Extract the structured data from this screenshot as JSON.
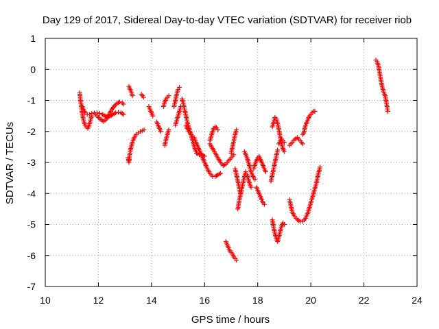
{
  "chart_data": {
    "type": "scatter",
    "title": "Day 129 of 2017, Sidereal Day-to-day VTEC variation (SDTVAR) for receiver riob",
    "xlabel": "GPS time / hours",
    "ylabel": "SDTVAR / TECUs",
    "xlim": [
      10,
      24
    ],
    "ylim": [
      -7,
      1
    ],
    "xticks": [
      10,
      12,
      14,
      16,
      18,
      20,
      22,
      24
    ],
    "yticks": [
      -7,
      -6,
      -5,
      -4,
      -3,
      -2,
      -1,
      0,
      1
    ],
    "grid": true,
    "marker": "+",
    "color": "#ff0000",
    "segments": [
      [
        [
          11.3,
          -0.75
        ],
        [
          11.32,
          -0.95
        ],
        [
          11.35,
          -1.15
        ],
        [
          11.38,
          -1.35
        ],
        [
          11.42,
          -1.55
        ],
        [
          11.46,
          -1.7
        ],
        [
          11.5,
          -1.8
        ],
        [
          11.55,
          -1.85
        ],
        [
          11.6,
          -1.9
        ],
        [
          11.65,
          -1.8
        ],
        [
          11.7,
          -1.65
        ],
        [
          11.75,
          -1.5
        ]
      ],
      [
        [
          11.4,
          -1.2
        ],
        [
          11.45,
          -1.3
        ],
        [
          11.5,
          -1.4
        ],
        [
          11.58,
          -1.45
        ],
        [
          11.66,
          -1.45
        ],
        [
          11.75,
          -1.42
        ],
        [
          11.85,
          -1.4
        ],
        [
          11.95,
          -1.4
        ],
        [
          12.05,
          -1.42
        ],
        [
          12.15,
          -1.45
        ],
        [
          12.25,
          -1.5
        ],
        [
          12.35,
          -1.55
        ],
        [
          12.45,
          -1.5
        ],
        [
          12.55,
          -1.45
        ],
        [
          12.65,
          -1.4
        ],
        [
          12.75,
          -1.38
        ],
        [
          12.85,
          -1.4
        ],
        [
          12.95,
          -1.45
        ]
      ],
      [
        [
          11.9,
          -1.45
        ],
        [
          12.0,
          -1.55
        ],
        [
          12.1,
          -1.62
        ],
        [
          12.2,
          -1.68
        ],
        [
          12.3,
          -1.6
        ],
        [
          12.4,
          -1.45
        ],
        [
          12.5,
          -1.3
        ],
        [
          12.6,
          -1.18
        ],
        [
          12.7,
          -1.1
        ],
        [
          12.8,
          -1.05
        ],
        [
          12.9,
          -1.08
        ],
        [
          12.95,
          -1.12
        ]
      ],
      [
        [
          13.15,
          -0.55
        ],
        [
          13.2,
          -0.65
        ],
        [
          13.25,
          -0.75
        ],
        [
          13.28,
          -0.85
        ]
      ],
      [
        [
          13.12,
          -2.85
        ],
        [
          13.15,
          -3.0
        ],
        [
          13.18,
          -2.75
        ],
        [
          13.22,
          -2.55
        ],
        [
          13.28,
          -2.35
        ],
        [
          13.35,
          -2.2
        ],
        [
          13.42,
          -2.1
        ],
        [
          13.5,
          -2.05
        ],
        [
          13.58,
          -2.0
        ],
        [
          13.65,
          -1.98
        ],
        [
          13.72,
          -1.95
        ]
      ],
      [
        [
          13.62,
          -0.8
        ],
        [
          13.66,
          -0.85
        ],
        [
          13.7,
          -0.9
        ]
      ],
      [
        [
          13.9,
          -1.2
        ],
        [
          13.95,
          -1.3
        ],
        [
          14.0,
          -1.4
        ],
        [
          14.05,
          -1.5
        ]
      ],
      [
        [
          14.2,
          -1.7
        ],
        [
          14.25,
          -1.8
        ],
        [
          14.3,
          -1.9
        ],
        [
          14.35,
          -2.0
        ]
      ],
      [
        [
          14.45,
          -1.2
        ],
        [
          14.5,
          -1.05
        ],
        [
          14.55,
          -0.95
        ],
        [
          14.6,
          -0.9
        ],
        [
          14.65,
          -0.85
        ]
      ],
      [
        [
          14.5,
          -2.45
        ],
        [
          14.55,
          -2.25
        ],
        [
          14.6,
          -2.1
        ],
        [
          14.65,
          -1.95
        ]
      ],
      [
        [
          14.85,
          -1.2
        ],
        [
          14.9,
          -1.0
        ],
        [
          14.95,
          -0.8
        ],
        [
          15.0,
          -0.65
        ],
        [
          15.05,
          -0.58
        ]
      ],
      [
        [
          14.9,
          -1.8
        ],
        [
          14.95,
          -1.65
        ],
        [
          15.0,
          -1.5
        ],
        [
          15.05,
          -1.35
        ],
        [
          15.1,
          -1.2
        ]
      ],
      [
        [
          15.15,
          -0.95
        ],
        [
          15.2,
          -1.1
        ],
        [
          15.25,
          -1.3
        ],
        [
          15.3,
          -1.5
        ],
        [
          15.35,
          -1.7
        ],
        [
          15.4,
          -1.85
        ],
        [
          15.45,
          -2.0
        ],
        [
          15.5,
          -2.15
        ],
        [
          15.55,
          -2.3
        ],
        [
          15.6,
          -2.45
        ],
        [
          15.65,
          -2.6
        ],
        [
          15.7,
          -2.7
        ],
        [
          15.8,
          -2.75
        ],
        [
          15.9,
          -2.75
        ],
        [
          16.0,
          -2.8
        ]
      ],
      [
        [
          15.3,
          -1.8
        ],
        [
          15.35,
          -1.9
        ],
        [
          15.4,
          -2.0
        ],
        [
          15.5,
          -2.1
        ],
        [
          15.6,
          -2.2
        ],
        [
          15.7,
          -2.4
        ],
        [
          15.8,
          -2.6
        ],
        [
          15.9,
          -2.8
        ],
        [
          16.0,
          -3.0
        ],
        [
          16.1,
          -3.2
        ],
        [
          16.2,
          -3.35
        ],
        [
          16.3,
          -3.45
        ],
        [
          16.4,
          -3.45
        ],
        [
          16.5,
          -3.4
        ],
        [
          16.6,
          -3.35
        ]
      ],
      [
        [
          16.2,
          -2.3
        ],
        [
          16.25,
          -2.15
        ],
        [
          16.3,
          -2.0
        ],
        [
          16.35,
          -1.9
        ],
        [
          16.4,
          -1.85
        ],
        [
          16.45,
          -1.88
        ],
        [
          16.5,
          -1.95
        ]
      ],
      [
        [
          16.2,
          -2.4
        ],
        [
          16.3,
          -2.55
        ],
        [
          16.4,
          -2.7
        ],
        [
          16.5,
          -2.85
        ],
        [
          16.6,
          -3.0
        ],
        [
          16.7,
          -3.1
        ],
        [
          16.8,
          -3.05
        ],
        [
          16.9,
          -2.95
        ],
        [
          17.0,
          -2.85
        ],
        [
          17.1,
          -2.75
        ]
      ],
      [
        [
          16.8,
          -5.55
        ],
        [
          16.85,
          -5.65
        ],
        [
          16.9,
          -5.75
        ],
        [
          16.95,
          -5.85
        ],
        [
          17.0,
          -5.9
        ],
        [
          17.05,
          -5.95
        ],
        [
          17.1,
          -6.05
        ],
        [
          17.15,
          -6.1
        ],
        [
          17.2,
          -6.15
        ]
      ],
      [
        [
          17.0,
          -2.7
        ],
        [
          17.05,
          -2.5
        ],
        [
          17.1,
          -2.3
        ],
        [
          17.15,
          -2.1
        ],
        [
          17.2,
          -1.95
        ]
      ],
      [
        [
          17.15,
          -3.2
        ],
        [
          17.2,
          -3.4
        ],
        [
          17.25,
          -3.6
        ],
        [
          17.3,
          -3.8
        ],
        [
          17.35,
          -4.0
        ]
      ],
      [
        [
          17.25,
          -4.5
        ],
        [
          17.3,
          -4.25
        ],
        [
          17.35,
          -4.05
        ],
        [
          17.4,
          -3.85
        ],
        [
          17.45,
          -3.65
        ],
        [
          17.5,
          -3.45
        ],
        [
          17.55,
          -3.3
        ]
      ],
      [
        [
          17.6,
          -3.4
        ],
        [
          17.65,
          -3.55
        ],
        [
          17.7,
          -3.7
        ],
        [
          17.75,
          -3.8
        ]
      ],
      [
        [
          17.5,
          -2.65
        ],
        [
          17.55,
          -2.75
        ],
        [
          17.6,
          -2.85
        ],
        [
          17.65,
          -3.0
        ],
        [
          17.7,
          -3.15
        ],
        [
          17.75,
          -3.3
        ],
        [
          17.8,
          -3.4
        ],
        [
          17.85,
          -3.5
        ],
        [
          17.9,
          -3.55
        ]
      ],
      [
        [
          17.85,
          -3.2
        ],
        [
          17.9,
          -3.05
        ],
        [
          17.95,
          -2.95
        ],
        [
          18.0,
          -2.85
        ],
        [
          18.05,
          -2.8
        ],
        [
          18.1,
          -2.9
        ],
        [
          18.15,
          -3.0
        ],
        [
          18.2,
          -3.1
        ],
        [
          18.25,
          -3.2
        ],
        [
          18.3,
          -3.3
        ]
      ],
      [
        [
          17.95,
          -3.8
        ],
        [
          18.0,
          -3.9
        ],
        [
          18.05,
          -4.0
        ],
        [
          18.1,
          -4.1
        ],
        [
          18.15,
          -4.2
        ],
        [
          18.2,
          -4.3
        ],
        [
          18.25,
          -4.35
        ]
      ],
      [
        [
          18.5,
          -3.6
        ],
        [
          18.55,
          -3.4
        ],
        [
          18.6,
          -3.2
        ],
        [
          18.65,
          -3.0
        ],
        [
          18.7,
          -2.8
        ],
        [
          18.75,
          -2.6
        ]
      ],
      [
        [
          18.55,
          -1.85
        ],
        [
          18.6,
          -1.7
        ],
        [
          18.65,
          -1.55
        ],
        [
          18.7,
          -1.6
        ],
        [
          18.75,
          -1.75
        ],
        [
          18.8,
          -1.95
        ],
        [
          18.85,
          -2.2
        ],
        [
          18.9,
          -2.4
        ],
        [
          18.95,
          -2.55
        ],
        [
          19.0,
          -2.65
        ]
      ],
      [
        [
          18.55,
          -4.85
        ],
        [
          18.6,
          -5.1
        ],
        [
          18.65,
          -5.3
        ],
        [
          18.7,
          -5.45
        ],
        [
          18.75,
          -5.55
        ],
        [
          18.8,
          -5.4
        ],
        [
          18.85,
          -5.2
        ],
        [
          18.9,
          -5.05
        ],
        [
          18.95,
          -4.95
        ],
        [
          19.0,
          -5.0
        ]
      ],
      [
        [
          18.8,
          -2.4
        ],
        [
          18.85,
          -2.3
        ],
        [
          18.9,
          -2.25
        ],
        [
          18.95,
          -2.3
        ],
        [
          19.0,
          -2.35
        ]
      ],
      [
        [
          19.2,
          -2.45
        ],
        [
          19.3,
          -2.35
        ],
        [
          19.4,
          -2.25
        ],
        [
          19.5,
          -2.2
        ],
        [
          19.6,
          -2.3
        ],
        [
          19.7,
          -2.4
        ]
      ],
      [
        [
          19.2,
          -4.2
        ],
        [
          19.25,
          -4.4
        ],
        [
          19.3,
          -4.6
        ],
        [
          19.4,
          -4.75
        ],
        [
          19.5,
          -4.85
        ],
        [
          19.6,
          -4.9
        ],
        [
          19.7,
          -4.9
        ],
        [
          19.8,
          -4.8
        ],
        [
          19.9,
          -4.6
        ],
        [
          20.0,
          -4.3
        ],
        [
          20.1,
          -4.0
        ],
        [
          20.2,
          -3.7
        ],
        [
          20.25,
          -3.5
        ],
        [
          20.3,
          -3.3
        ],
        [
          20.35,
          -3.15
        ]
      ],
      [
        [
          19.7,
          -2.1
        ],
        [
          19.75,
          -2.0
        ],
        [
          19.8,
          -1.8
        ],
        [
          19.85,
          -1.7
        ],
        [
          19.9,
          -1.6
        ],
        [
          19.95,
          -1.5
        ],
        [
          20.0,
          -1.45
        ],
        [
          20.05,
          -1.4
        ],
        [
          20.1,
          -1.35
        ],
        [
          20.15,
          -1.35
        ]
      ],
      [
        [
          22.45,
          0.3
        ],
        [
          22.5,
          0.25
        ],
        [
          22.55,
          0.1
        ],
        [
          22.6,
          -0.15
        ],
        [
          22.65,
          -0.4
        ],
        [
          22.7,
          -0.6
        ],
        [
          22.75,
          -0.75
        ],
        [
          22.8,
          -0.85
        ],
        [
          22.85,
          -1.1
        ],
        [
          22.9,
          -1.35
        ]
      ]
    ]
  }
}
